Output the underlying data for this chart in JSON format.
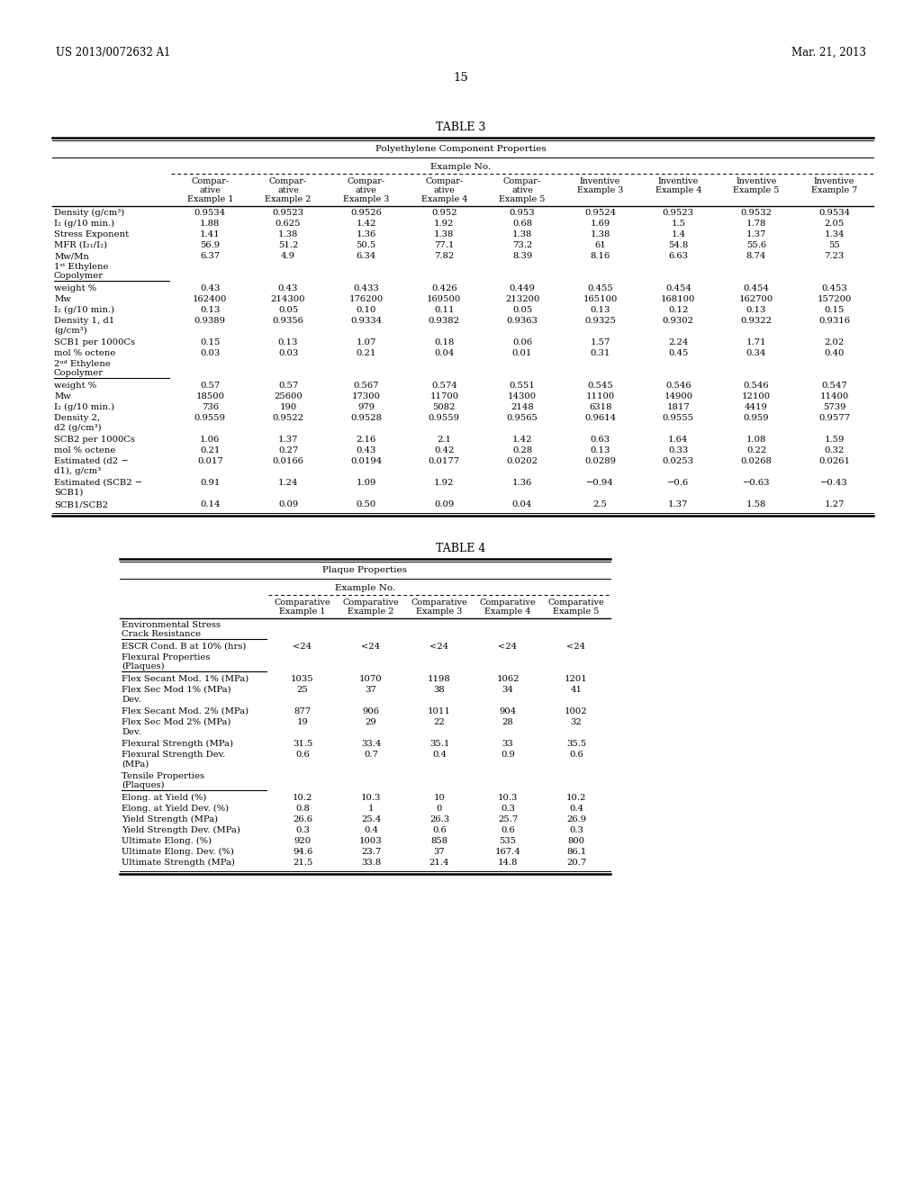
{
  "page_header_left": "US 2013/0072632 A1",
  "page_header_right": "Mar. 21, 2013",
  "page_number": "15",
  "table3_title": "TABLE 3",
  "table3_subtitle": "Polyethylene Component Properties",
  "table3_example_label": "Example No.",
  "table3_col_headers": [
    "Compar-\native\nExample 1",
    "Compar-\native\nExample 2",
    "Compar-\native\nExample 3",
    "Compar-\native\nExample 4",
    "Compar-\native\nExample 5",
    "Inventive\nExample 3",
    "Inventive\nExample 4",
    "Inventive\nExample 5",
    "Inventive\nExample 7"
  ],
  "table3_section1_rows": [
    [
      "Density (g/cm³)",
      "0.9534",
      "0.9523",
      "0.9526",
      "0.952",
      "0.953",
      "0.9524",
      "0.9523",
      "0.9532",
      "0.9534"
    ],
    [
      "I₂ (g/10 min.)",
      "1.88",
      "0.625",
      "1.42",
      "1.92",
      "0.68",
      "1.69",
      "1.5",
      "1.78",
      "2.05"
    ],
    [
      "Stress Exponent",
      "1.41",
      "1.38",
      "1.36",
      "1.38",
      "1.38",
      "1.38",
      "1.4",
      "1.37",
      "1.34"
    ],
    [
      "MFR (I₂₁/I₂)",
      "56.9",
      "51.2",
      "50.5",
      "77.1",
      "73.2",
      "61",
      "54.8",
      "55.6",
      "55"
    ],
    [
      "Mw/Mn",
      "6.37",
      "4.9",
      "6.34",
      "7.82",
      "8.39",
      "8.16",
      "6.63",
      "8.74",
      "7.23"
    ]
  ],
  "table3_section2_rows": [
    [
      "weight %",
      "0.43",
      "0.43",
      "0.433",
      "0.426",
      "0.449",
      "0.455",
      "0.454",
      "0.454",
      "0.453"
    ],
    [
      "Mw",
      "162400",
      "214300",
      "176200",
      "169500",
      "213200",
      "165100",
      "168100",
      "162700",
      "157200"
    ],
    [
      "I₂ (g/10 min.)",
      "0.13",
      "0.05",
      "0.10",
      "0.11",
      "0.05",
      "0.13",
      "0.12",
      "0.13",
      "0.15"
    ],
    [
      "Density 1, d1\n(g/cm³)",
      "0.9389",
      "0.9356",
      "0.9334",
      "0.9382",
      "0.9363",
      "0.9325",
      "0.9302",
      "0.9322",
      "0.9316"
    ],
    [
      "SCB1 per 1000Cs",
      "0.15",
      "0.13",
      "1.07",
      "0.18",
      "0.06",
      "1.57",
      "2.24",
      "1.71",
      "2.02"
    ],
    [
      "mol % octene",
      "0.03",
      "0.03",
      "0.21",
      "0.04",
      "0.01",
      "0.31",
      "0.45",
      "0.34",
      "0.40"
    ]
  ],
  "table3_section3_rows": [
    [
      "weight %",
      "0.57",
      "0.57",
      "0.567",
      "0.574",
      "0.551",
      "0.545",
      "0.546",
      "0.546",
      "0.547"
    ],
    [
      "Mw",
      "18500",
      "25600",
      "17300",
      "11700",
      "14300",
      "11100",
      "14900",
      "12100",
      "11400"
    ],
    [
      "I₂ (g/10 min.)",
      "736",
      "190",
      "979",
      "5082",
      "2148",
      "6318",
      "1817",
      "4419",
      "5739"
    ],
    [
      "Density 2,\nd2 (g/cm³)",
      "0.9559",
      "0.9522",
      "0.9528",
      "0.9559",
      "0.9565",
      "0.9614",
      "0.9555",
      "0.959",
      "0.9577"
    ],
    [
      "SCB2 per 1000Cs",
      "1.06",
      "1.37",
      "2.16",
      "2.1",
      "1.42",
      "0.63",
      "1.64",
      "1.08",
      "1.59"
    ],
    [
      "mol % octene",
      "0.21",
      "0.27",
      "0.43",
      "0.42",
      "0.28",
      "0.13",
      "0.33",
      "0.22",
      "0.32"
    ],
    [
      "Estimated (d2 −\nd1), g/cm³",
      "0.017",
      "0.0166",
      "0.0194",
      "0.0177",
      "0.0202",
      "0.0289",
      "0.0253",
      "0.0268",
      "0.0261"
    ],
    [
      "Estimated (SCB2 −\nSCB1)",
      "0.91",
      "1.24",
      "1.09",
      "1.92",
      "1.36",
      "−0.94",
      "−0.6",
      "−0.63",
      "−0.43"
    ],
    [
      "SCB1/SCB2",
      "0.14",
      "0.09",
      "0.50",
      "0.09",
      "0.04",
      "2.5",
      "1.37",
      "1.58",
      "1.27"
    ]
  ],
  "table4_title": "TABLE 4",
  "table4_subtitle": "Plaque Properties",
  "table4_example_label": "Example No.",
  "table4_col_headers": [
    "Comparative\nExample 1",
    "Comparative\nExample 2",
    "Comparative\nExample 3",
    "Comparative\nExample 4",
    "Comparative\nExample 5"
  ],
  "table4_section1_rows": [
    [
      "ESCR Cond. B at 10% (hrs)",
      "<24",
      "<24",
      "<24",
      "<24",
      "<24"
    ]
  ],
  "table4_section2_rows": [
    [
      "Flex Secant Mod. 1% (MPa)",
      "1035",
      "1070",
      "1198",
      "1062",
      "1201"
    ],
    [
      "Flex Sec Mod 1% (MPa)\nDev.",
      "25",
      "37",
      "38",
      "34",
      "41"
    ],
    [
      "Flex Secant Mod. 2% (MPa)",
      "877",
      "906",
      "1011",
      "904",
      "1002"
    ],
    [
      "Flex Sec Mod 2% (MPa)\nDev.",
      "19",
      "29",
      "22",
      "28",
      "32"
    ],
    [
      "Flexural Strength (MPa)",
      "31.5",
      "33.4",
      "35.1",
      "33",
      "35.5"
    ],
    [
      "Flexural Strength Dev.\n(MPa)",
      "0.6",
      "0.7",
      "0.4",
      "0.9",
      "0.6"
    ]
  ],
  "table4_section3_rows": [
    [
      "Elong. at Yield (%)",
      "10.2",
      "10.3",
      "10",
      "10.3",
      "10.2"
    ],
    [
      "Elong. at Yield Dev. (%)",
      "0.8",
      "1",
      "0",
      "0.3",
      "0.4"
    ],
    [
      "Yield Strength (MPa)",
      "26.6",
      "25.4",
      "26.3",
      "25.7",
      "26.9"
    ],
    [
      "Yield Strength Dev. (MPa)",
      "0.3",
      "0.4",
      "0.6",
      "0.6",
      "0.3"
    ],
    [
      "Ultimate Elong. (%)",
      "920",
      "1003",
      "858",
      "535",
      "800"
    ],
    [
      "Ultimate Elong. Dev. (%)",
      "94.6",
      "23.7",
      "37",
      "167.4",
      "86.1"
    ],
    [
      "Ultimate Strength (MPa)",
      "21.5",
      "33.8",
      "21.4",
      "14.8",
      "20.7"
    ]
  ],
  "bg_color": "#ffffff",
  "text_color": "#000000"
}
